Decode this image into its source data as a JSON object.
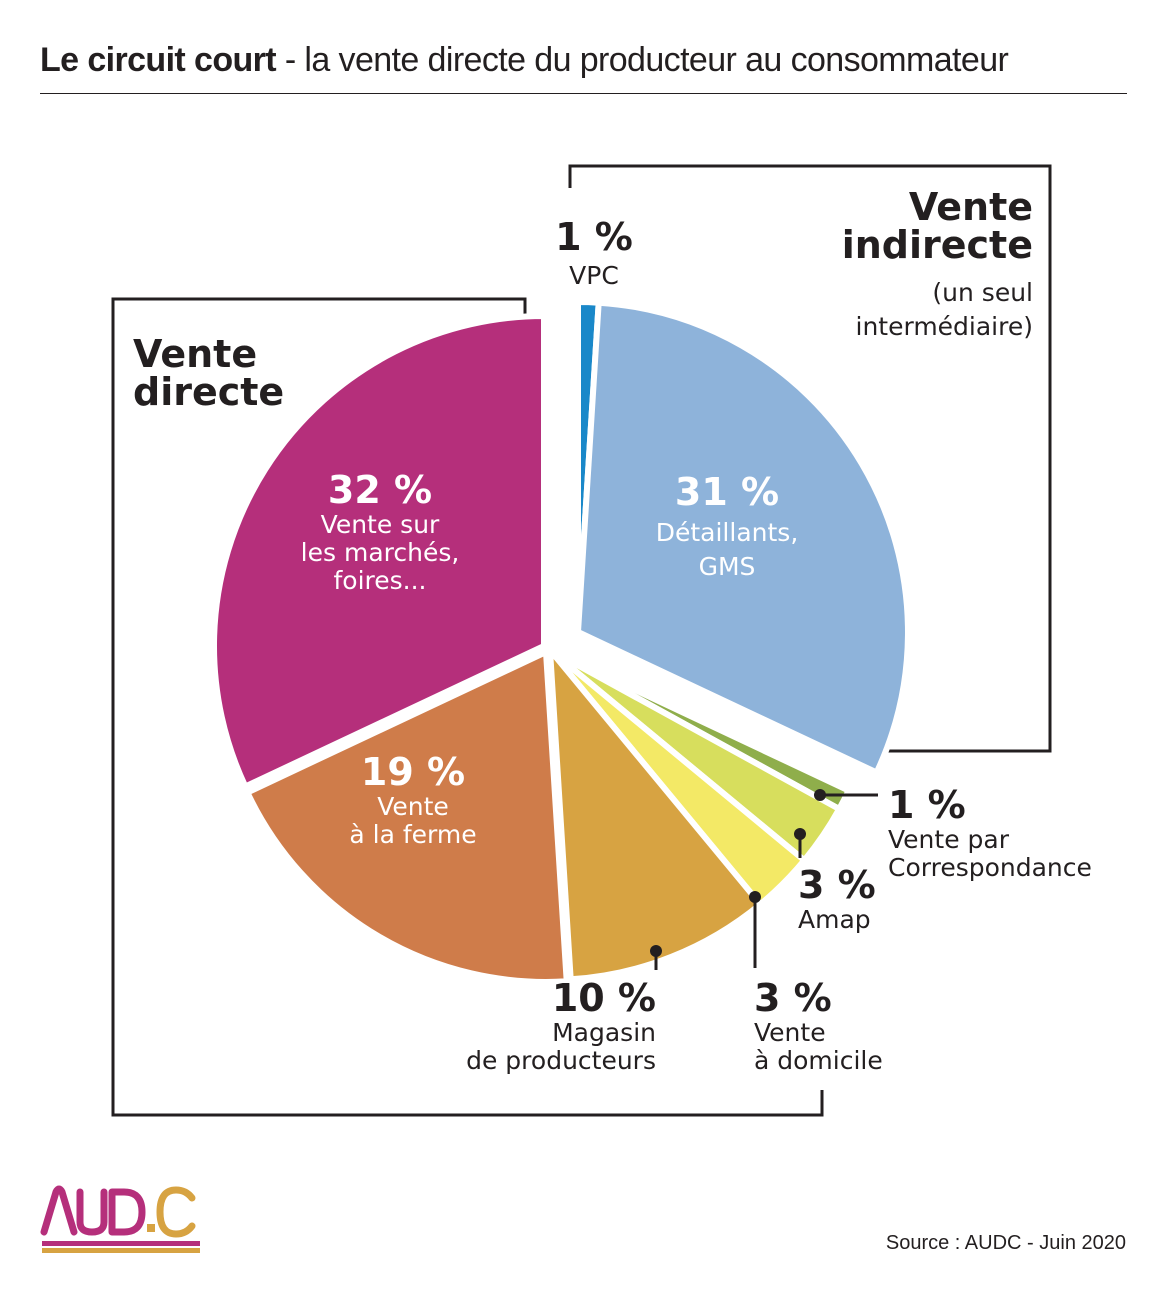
{
  "title": {
    "bold": "Le circuit court",
    "rest": " - la vente directe du producteur au consommateur"
  },
  "groups": {
    "direct": [
      "Vente",
      "directe"
    ],
    "indirect": [
      "Vente",
      "indirecte"
    ],
    "indirect_note": [
      "(un seul",
      "intermédiaire)"
    ]
  },
  "chart_data": {
    "type": "pie",
    "slices": [
      {
        "key": "vpc",
        "value": 1,
        "pct": "1 %",
        "label": [
          "VPC"
        ],
        "color": "#1a88c9",
        "group": "Vente indirecte"
      },
      {
        "key": "detail",
        "value": 31,
        "pct": "31 %",
        "label": [
          "Détaillants,",
          "GMS"
        ],
        "color": "#8eb3da",
        "group": "Vente indirecte"
      },
      {
        "key": "corresp",
        "value": 1,
        "pct": "1 %",
        "label": [
          "Vente par",
          "Correspondance"
        ],
        "color": "#8fae4b",
        "group": "Vente directe"
      },
      {
        "key": "amap",
        "value": 3,
        "pct": "3 %",
        "label": [
          "Amap"
        ],
        "color": "#d7de5d",
        "group": "Vente directe"
      },
      {
        "key": "domicile",
        "value": 3,
        "pct": "3 %",
        "label": [
          "Vente",
          "à domicile"
        ],
        "color": "#f3e966",
        "group": "Vente directe"
      },
      {
        "key": "magasin",
        "value": 10,
        "pct": "10 %",
        "label": [
          "Magasin",
          "de producteurs"
        ],
        "color": "#d7a342",
        "group": "Vente directe"
      },
      {
        "key": "ferme",
        "value": 19,
        "pct": "19 %",
        "label": [
          "Vente",
          "à la ferme"
        ],
        "color": "#cf7c4a",
        "group": "Vente directe"
      },
      {
        "key": "marches",
        "value": 32,
        "pct": "32 %",
        "label": [
          "Vente sur",
          "les marchés,",
          "foires..."
        ],
        "color": "#b52f7b",
        "group": "Vente directe"
      }
    ]
  },
  "source": "Source : AUDC - Juin 2020",
  "logo": {
    "text": "AUD.C",
    "colors": [
      "#b52f7b",
      "#d7a342"
    ]
  }
}
